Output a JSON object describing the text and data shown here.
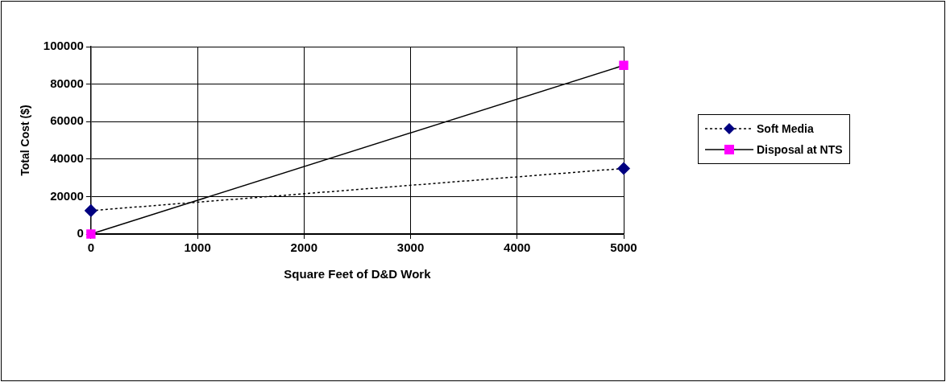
{
  "chart_data": {
    "type": "line",
    "xlabel": "Square Feet of D&D Work",
    "ylabel": "Total Cost ($)",
    "x": [
      0,
      5000
    ],
    "series": [
      {
        "name": "Soft Media",
        "color": "#000080",
        "values": [
          12500,
          35000
        ],
        "marker": "diamond",
        "line_style": "dotted"
      },
      {
        "name": "Disposal at NTS",
        "color": "#ff00ff",
        "values": [
          0,
          90000
        ],
        "marker": "square",
        "line_style": "solid"
      }
    ],
    "xlim": [
      0,
      5000
    ],
    "xticks": [
      0,
      1000,
      2000,
      3000,
      4000,
      5000
    ],
    "ylim": [
      0,
      100000
    ],
    "yticks": [
      0,
      20000,
      40000,
      60000,
      80000,
      100000
    ],
    "grid": true,
    "legend": "right"
  }
}
